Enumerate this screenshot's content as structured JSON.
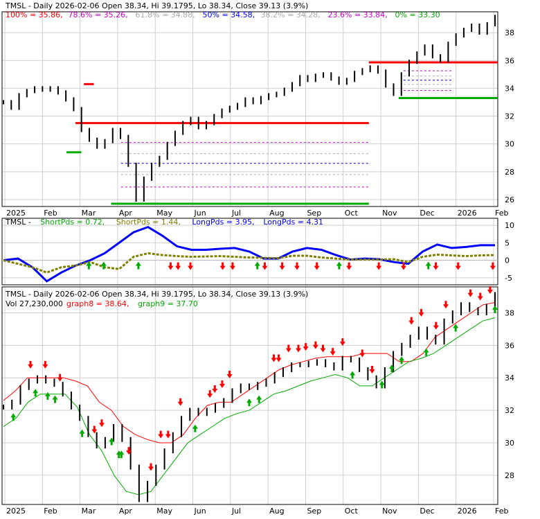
{
  "colors": {
    "red": "#ff0000",
    "green": "#00aa00",
    "blue": "#0000ff",
    "lightblue": "#8aa6e6",
    "gray": "#999999",
    "olive": "#808000",
    "black": "#000000",
    "fib_colors": [
      "#ff0000",
      "#cc00cc",
      "#aaaaaa",
      "#0000ff",
      "#aaaaaa",
      "#cc00cc",
      "#00aa00"
    ]
  },
  "chart_data": [
    {
      "type": "line",
      "title": "TMSL - Daily 2026-02-06 Open 38.34, Hi 39.1795, Lo 38.34, Close 39.13 (3.9%)",
      "fib_levels": [
        {
          "label": "100%",
          "value": 35.86
        },
        {
          "label": "78.6%",
          "value": 35.26
        },
        {
          "label": "61.8%",
          "value": 34.88
        },
        {
          "label": "50%",
          "value": 34.58
        },
        {
          "label": "38.2%",
          "value": 34.28
        },
        {
          "label": "23.6%",
          "value": 33.84
        },
        {
          "label": "0%",
          "value": 33.3
        }
      ],
      "x_ticks": [
        "2025",
        "Feb",
        "Mar",
        "Apr",
        "May",
        "Jun",
        "Jul",
        "Aug",
        "Sep",
        "Oct",
        "Nov",
        "Dec",
        "2026",
        "Feb"
      ],
      "y_ticks": [
        26,
        28,
        30,
        32,
        34,
        36,
        38
      ],
      "ylim": [
        25.5,
        39.5
      ],
      "grid": true,
      "price_series": [
        33.0,
        32.6,
        33.5,
        33.8,
        34.0,
        33.9,
        34.0,
        33.7,
        33.2,
        32.5,
        31.0,
        30.3,
        29.8,
        30.2,
        31.0,
        30.5,
        28.5,
        26.0,
        27.5,
        28.5,
        29.0,
        30.0,
        30.8,
        31.5,
        31.8,
        31.2,
        31.5,
        32.0,
        32.4,
        32.6,
        32.8,
        33.2,
        33.0,
        33.3,
        33.5,
        33.6,
        33.9,
        34.3,
        34.8,
        34.6,
        34.9,
        35.0,
        34.7,
        34.4,
        34.6,
        35.1,
        35.3,
        35.5,
        35.2,
        34.2,
        33.6,
        35.0,
        35.9,
        36.5,
        37.0,
        36.3,
        36.0,
        37.2,
        37.8,
        38.2,
        38.5,
        38.0,
        38.6,
        39.13
      ],
      "support_resistance": [
        {
          "kind": "resistance",
          "x0": 0.165,
          "x1": 0.185,
          "value": 34.3
        },
        {
          "kind": "support",
          "x0": 0.13,
          "x1": 0.16,
          "value": 29.4
        },
        {
          "kind": "resistance",
          "x0": 0.148,
          "x1": 0.74,
          "value": 31.5
        },
        {
          "kind": "support",
          "x0": 0.22,
          "x1": 0.74,
          "value": 25.7
        },
        {
          "kind": "resistance",
          "x0": 0.74,
          "x1": 1.0,
          "value": 35.86
        },
        {
          "kind": "support",
          "x0": 0.8,
          "x1": 1.0,
          "value": 33.3
        }
      ]
    },
    {
      "type": "line",
      "title": "TMSL - ShortPds = 0.72, ShortPds = 1.44, LongPds = 3.95, LongPds = 4.31",
      "legend": [
        {
          "label": "TMSL - ",
          "color": "black"
        },
        {
          "label": "ShortPds = 0.72,",
          "color": "green"
        },
        {
          "label": "ShortPds = 1.44,",
          "color": "olive"
        },
        {
          "label": "LongPds = 3.95,",
          "color": "blue"
        },
        {
          "label": "LongPds = 4.31",
          "color": "blue"
        }
      ],
      "y_ticks": [
        10,
        5,
        0,
        -5
      ],
      "ylim": [
        -7,
        12
      ],
      "series": [
        {
          "name": "LongPds = 3.95",
          "color": "blue",
          "values": [
            0,
            0.5,
            -2,
            -6,
            -3.5,
            -1.5,
            0,
            2,
            5,
            8,
            9.5,
            7,
            4,
            3,
            3,
            3.3,
            3.5,
            2.5,
            0.5,
            0.5,
            2.5,
            3.5,
            3,
            1.5,
            0.2,
            0.5,
            0.3,
            -0.5,
            -1.0,
            2.5,
            4.5,
            3.5,
            3.8,
            4.3,
            4.3
          ]
        },
        {
          "name": "ShortPds = 1.44",
          "color": "olive",
          "values": [
            0,
            -1,
            -2,
            -3.5,
            -2,
            -1.5,
            -0.5,
            -2,
            -2.5,
            1,
            2,
            1.5,
            1.2,
            1,
            1.1,
            1.2,
            1,
            0.8,
            0.7,
            0.6,
            1.3,
            1.3,
            0.8,
            0.5,
            0.2,
            0.2,
            0.2,
            0.3,
            -0.5,
            1.0,
            1.6,
            1.4,
            1.2,
            1.4,
            1.5
          ]
        }
      ],
      "signals": [
        {
          "x": 0.175,
          "kind": "buy"
        },
        {
          "x": 0.205,
          "kind": "buy"
        },
        {
          "x": 0.275,
          "kind": "buy"
        },
        {
          "x": 0.34,
          "kind": "sell"
        },
        {
          "x": 0.355,
          "kind": "sell"
        },
        {
          "x": 0.38,
          "kind": "sell"
        },
        {
          "x": 0.445,
          "kind": "sell"
        },
        {
          "x": 0.465,
          "kind": "sell"
        },
        {
          "x": 0.515,
          "kind": "buy"
        },
        {
          "x": 0.53,
          "kind": "sell"
        },
        {
          "x": 0.565,
          "kind": "sell"
        },
        {
          "x": 0.595,
          "kind": "sell"
        },
        {
          "x": 0.635,
          "kind": "sell"
        },
        {
          "x": 0.68,
          "kind": "buy"
        },
        {
          "x": 0.7,
          "kind": "sell"
        },
        {
          "x": 0.76,
          "kind": "sell"
        },
        {
          "x": 0.81,
          "kind": "sell"
        },
        {
          "x": 0.86,
          "kind": "buy"
        },
        {
          "x": 0.875,
          "kind": "sell"
        },
        {
          "x": 0.92,
          "kind": "sell"
        },
        {
          "x": 0.99,
          "kind": "sell"
        }
      ]
    },
    {
      "type": "line",
      "title": "TMSL - Daily 2026-02-06 Open 38.34, Hi 39.1795, Lo 38.34, Close 39.13 (3.9%)",
      "volume_label": "Vol 27,230,000",
      "legend": [
        {
          "label": "graph8 = 38.64,",
          "color": "red"
        },
        {
          "label": "graph9 = 37.70",
          "color": "green"
        }
      ],
      "x_ticks": [
        "2025",
        "Feb",
        "Mar",
        "Apr",
        "May",
        "Jun",
        "Jul",
        "Aug",
        "Sep",
        "Oct",
        "Nov",
        "Dec",
        "2026",
        "Feb"
      ],
      "y_ticks": [
        28,
        30,
        32,
        34,
        36,
        38
      ],
      "ylim": [
        26.2,
        39.6
      ],
      "price_series": [
        32.2,
        32.5,
        33.4,
        33.8,
        34.0,
        33.8,
        33.6,
        33.0,
        32.2,
        31.5,
        30.5,
        29.8,
        30.2,
        31.0,
        30.2,
        28.5,
        26.5,
        27.5,
        28.5,
        29.5,
        30.5,
        31.5,
        32.0,
        31.8,
        32.0,
        32.3,
        32.6,
        33.2,
        33.5,
        33.4,
        33.6,
        33.8,
        34.2,
        34.5,
        34.8,
        34.8,
        34.9,
        35.0,
        34.8,
        34.6,
        35.2,
        35.1,
        34.5,
        34.0,
        33.5,
        34.5,
        35.5,
        36.0,
        36.5,
        37.0,
        36.5,
        36.2,
        37.5,
        38.0,
        38.5,
        38.2,
        38.0,
        38.4,
        39.13
      ],
      "series": [
        {
          "name": "graph8",
          "color": "red",
          "values": [
            32.6,
            33.2,
            34.0,
            34.0,
            34.0,
            34.0,
            33.8,
            33.5,
            32.5,
            32.0,
            31.0,
            30.5,
            30.2,
            30.0,
            30.0,
            30.5,
            31.5,
            32.3,
            32.5,
            32.5,
            33.0,
            33.5,
            34.0,
            34.5,
            34.8,
            35.0,
            35.2,
            35.3,
            35.3,
            35.3,
            35.5,
            35.5,
            35.5,
            35.0,
            35.0,
            35.5,
            36.5,
            37.0,
            37.5,
            38.0,
            38.5,
            38.64
          ]
        },
        {
          "name": "graph9",
          "color": "green",
          "values": [
            31.0,
            31.5,
            32.5,
            33.0,
            33.0,
            33.0,
            32.2,
            30.5,
            29.5,
            28.0,
            27.0,
            26.8,
            27.0,
            28.0,
            29.0,
            30.0,
            30.5,
            31.0,
            31.5,
            31.8,
            32.0,
            32.5,
            33.0,
            33.2,
            33.5,
            33.8,
            34.0,
            34.2,
            34.0,
            33.5,
            33.5,
            34.0,
            34.5,
            35.0,
            35.2,
            35.5,
            36.0,
            36.5,
            37.0,
            37.5,
            37.7
          ]
        }
      ],
      "signals": [
        {
          "x": 0.02,
          "kind": "buy"
        },
        {
          "x": 0.055,
          "kind": "sell"
        },
        {
          "x": 0.065,
          "kind": "buy"
        },
        {
          "x": 0.085,
          "kind": "sell"
        },
        {
          "x": 0.09,
          "kind": "buy"
        },
        {
          "x": 0.105,
          "kind": "buy"
        },
        {
          "x": 0.115,
          "kind": "sell"
        },
        {
          "x": 0.16,
          "kind": "buy"
        },
        {
          "x": 0.185,
          "kind": "sell"
        },
        {
          "x": 0.2,
          "kind": "sell"
        },
        {
          "x": 0.22,
          "kind": "buy"
        },
        {
          "x": 0.235,
          "kind": "buy"
        },
        {
          "x": 0.24,
          "kind": "buy"
        },
        {
          "x": 0.255,
          "kind": "sell"
        },
        {
          "x": 0.3,
          "kind": "sell"
        },
        {
          "x": 0.32,
          "kind": "sell"
        },
        {
          "x": 0.335,
          "kind": "sell"
        },
        {
          "x": 0.36,
          "kind": "sell"
        },
        {
          "x": 0.39,
          "kind": "buy"
        },
        {
          "x": 0.42,
          "kind": "sell"
        },
        {
          "x": 0.43,
          "kind": "sell"
        },
        {
          "x": 0.445,
          "kind": "sell"
        },
        {
          "x": 0.46,
          "kind": "sell"
        },
        {
          "x": 0.5,
          "kind": "buy"
        },
        {
          "x": 0.52,
          "kind": "buy"
        },
        {
          "x": 0.55,
          "kind": "sell"
        },
        {
          "x": 0.56,
          "kind": "sell"
        },
        {
          "x": 0.58,
          "kind": "sell"
        },
        {
          "x": 0.6,
          "kind": "sell"
        },
        {
          "x": 0.615,
          "kind": "sell"
        },
        {
          "x": 0.635,
          "kind": "sell"
        },
        {
          "x": 0.65,
          "kind": "sell"
        },
        {
          "x": 0.67,
          "kind": "sell"
        },
        {
          "x": 0.69,
          "kind": "sell"
        },
        {
          "x": 0.71,
          "kind": "buy"
        },
        {
          "x": 0.73,
          "kind": "sell"
        },
        {
          "x": 0.75,
          "kind": "sell"
        },
        {
          "x": 0.77,
          "kind": "buy"
        },
        {
          "x": 0.79,
          "kind": "buy"
        },
        {
          "x": 0.81,
          "kind": "buy"
        },
        {
          "x": 0.83,
          "kind": "sell"
        },
        {
          "x": 0.85,
          "kind": "sell"
        },
        {
          "x": 0.86,
          "kind": "buy"
        },
        {
          "x": 0.88,
          "kind": "sell"
        },
        {
          "x": 0.9,
          "kind": "sell"
        },
        {
          "x": 0.92,
          "kind": "buy"
        },
        {
          "x": 0.95,
          "kind": "sell"
        },
        {
          "x": 0.97,
          "kind": "sell"
        },
        {
          "x": 0.99,
          "kind": "sell"
        },
        {
          "x": 1.0,
          "kind": "buy"
        }
      ]
    }
  ]
}
